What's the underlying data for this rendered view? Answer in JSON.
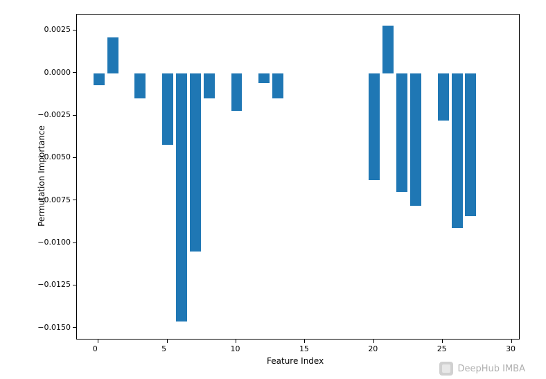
{
  "chart": {
    "type": "bar",
    "xlabel": "Feature Index",
    "ylabel": "Permutation Importance",
    "label_fontsize": 12,
    "tick_fontsize": 11,
    "xlim": [
      -1.6,
      30.6
    ],
    "ylim": [
      -0.0157,
      0.00345
    ],
    "xticks": [
      0,
      5,
      10,
      15,
      20,
      25,
      30
    ],
    "yticks": [
      -0.015,
      -0.0125,
      -0.01,
      -0.0075,
      -0.005,
      -0.0025,
      0.0,
      0.0025
    ],
    "ytick_labels": [
      "−0.0150",
      "−0.0125",
      "−0.0100",
      "−0.0075",
      "−0.0050",
      "−0.0025",
      "0.0000",
      "0.0025"
    ],
    "bar_width": 0.8,
    "bar_color": "#1f77b4",
    "border_color": "#000000",
    "background_color": "#ffffff",
    "indices": [
      0,
      1,
      2,
      3,
      4,
      5,
      6,
      7,
      8,
      9,
      10,
      11,
      12,
      13,
      14,
      15,
      16,
      17,
      18,
      19,
      20,
      21,
      22,
      23,
      24,
      25,
      26,
      27,
      28,
      29,
      30
    ],
    "values": [
      -0.0007,
      0.0021,
      0,
      -0.0015,
      0,
      -0.0042,
      -0.0146,
      -0.0105,
      -0.0015,
      0,
      -0.0022,
      0,
      -0.0006,
      -0.0015,
      0,
      0,
      0,
      0,
      0,
      0,
      -0.0063,
      0.0028,
      -0.007,
      -0.0078,
      0,
      -0.0028,
      -0.0091,
      -0.0084,
      0,
      0,
      0
    ]
  },
  "watermark": {
    "text": "DeepHub IMBA",
    "color": "#b0b0b0"
  }
}
